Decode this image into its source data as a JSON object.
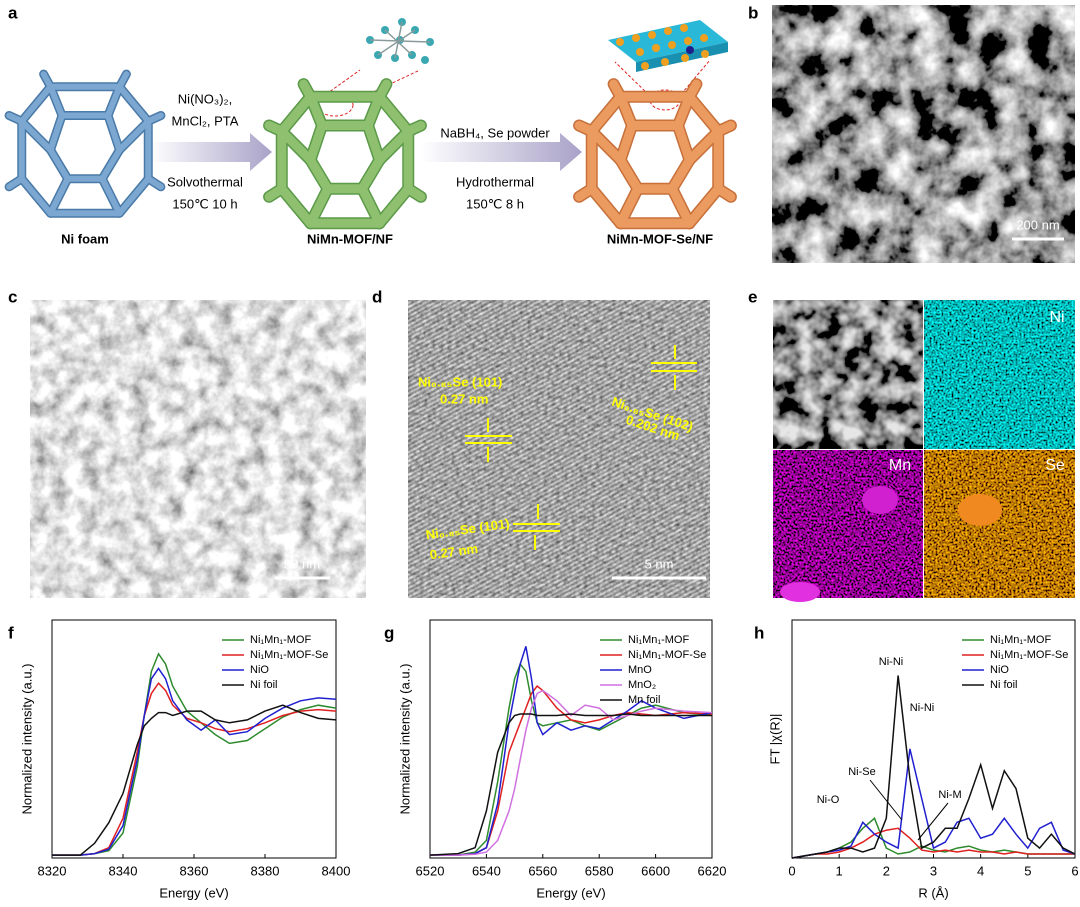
{
  "figure": {
    "panel_labels": [
      "a",
      "b",
      "c",
      "d",
      "e",
      "f",
      "g",
      "h"
    ],
    "schematic": {
      "reagents_1": [
        "Ni(NO₃)₂,",
        "MnCl₂, PTA"
      ],
      "conditions_1": [
        "Solvothermal",
        "150℃ 10 h"
      ],
      "reagents_2": "NaBH₄, Se powder",
      "conditions_2": [
        "Hydrothermal",
        "150℃ 8 h"
      ],
      "materials": [
        "Ni foam",
        "NiMn-MOF/NF",
        "NiMn-MOF-Se/NF"
      ]
    },
    "scale_bars": {
      "b": "200 nm",
      "c": "50 nm",
      "d": "5 nm"
    },
    "hrtem_labels": [
      [
        "Ni₀.₈₅Se (101)",
        "0.27 nm"
      ],
      [
        "Ni₀.₈₅Se  (102)",
        "0.202 nm"
      ],
      [
        "Ni₀.₈₅Se (101)",
        "0.27 nm"
      ]
    ],
    "mapping_labels": [
      "Ni",
      "Mn",
      "Se"
    ]
  },
  "chart_data": [
    {
      "type": "line",
      "x_label": "Energy (eV)",
      "y_label": "Normalized intensity (a.u.)",
      "x": [
        8320,
        8328,
        8332,
        8336,
        8340,
        8344,
        8346,
        8348,
        8350,
        8352,
        8354,
        8358,
        8362,
        8366,
        8370,
        8375,
        8380,
        8385,
        8390,
        8395,
        8400
      ],
      "xlim": [
        8320,
        8400
      ],
      "xticks": [
        8320,
        8340,
        8360,
        8380,
        8400
      ],
      "ylim": [
        -0.02,
        1.6
      ],
      "series": [
        {
          "name": "Ni₁Mn₁-MOF",
          "color": "#2e8b2e",
          "values": [
            0,
            0,
            0.01,
            0.03,
            0.15,
            0.6,
            0.95,
            1.25,
            1.37,
            1.3,
            1.15,
            0.98,
            0.9,
            0.82,
            0.76,
            0.78,
            0.86,
            0.94,
            0.99,
            1.02,
            1.0
          ]
        },
        {
          "name": "Ni₁Mn₁-MOF-Se",
          "color": "#e02020",
          "values": [
            0,
            0,
            0.01,
            0.05,
            0.25,
            0.7,
            0.95,
            1.1,
            1.17,
            1.12,
            1.02,
            0.93,
            0.9,
            0.86,
            0.84,
            0.86,
            0.9,
            0.95,
            0.98,
            0.99,
            0.98
          ]
        },
        {
          "name": "NiO",
          "color": "#2020d0",
          "values": [
            0,
            0,
            0.01,
            0.04,
            0.2,
            0.65,
            0.95,
            1.2,
            1.27,
            1.2,
            1.05,
            0.92,
            0.85,
            0.92,
            0.82,
            0.84,
            0.93,
            1.0,
            1.05,
            1.07,
            1.06
          ]
        },
        {
          "name": "Ni foil",
          "color": "#111111",
          "values": [
            0,
            0,
            0.08,
            0.22,
            0.42,
            0.75,
            0.88,
            0.93,
            0.97,
            0.97,
            0.95,
            0.98,
            0.98,
            0.92,
            0.9,
            0.92,
            0.98,
            1.02,
            0.97,
            0.93,
            0.92
          ]
        }
      ]
    },
    {
      "type": "line",
      "x_label": "Energy (eV)",
      "y_label": "Normalized intensity (a.u.)",
      "x": [
        6520,
        6530,
        6536,
        6540,
        6544,
        6548,
        6550,
        6552,
        6554,
        6556,
        6558,
        6560,
        6565,
        6570,
        6575,
        6580,
        6585,
        6590,
        6595,
        6600,
        6610,
        6620
      ],
      "xlim": [
        6520,
        6620
      ],
      "xticks": [
        6520,
        6540,
        6560,
        6580,
        6600,
        6620
      ],
      "ylim": [
        -0.02,
        1.6
      ],
      "series": [
        {
          "name": "Ni₁Mn₁-MOF",
          "color": "#2e8b2e",
          "values": [
            0,
            0,
            0.02,
            0.1,
            0.5,
            1.0,
            1.2,
            1.3,
            1.25,
            1.05,
            0.9,
            0.88,
            0.9,
            0.92,
            0.88,
            0.85,
            0.9,
            0.95,
            1.0,
            1.02,
            0.97,
            0.95
          ]
        },
        {
          "name": "Ni₁Mn₁-MOF-Se",
          "color": "#e02020",
          "values": [
            0,
            0,
            0.01,
            0.05,
            0.3,
            0.7,
            0.8,
            0.9,
            1.0,
            1.1,
            1.15,
            1.12,
            1.0,
            0.92,
            0.9,
            0.92,
            0.95,
            0.97,
            0.96,
            0.95,
            0.97,
            0.96
          ]
        },
        {
          "name": "MnO",
          "color": "#2020d0",
          "values": [
            0,
            0,
            0.01,
            0.05,
            0.35,
            0.9,
            1.1,
            1.3,
            1.42,
            1.2,
            0.9,
            0.82,
            0.9,
            0.85,
            0.88,
            0.86,
            0.92,
            0.98,
            1.05,
            1.0,
            0.93,
            0.97
          ]
        },
        {
          "name": "MnO₂",
          "color": "#d070e0",
          "values": [
            0,
            0,
            0.005,
            0.02,
            0.1,
            0.3,
            0.45,
            0.65,
            0.85,
            1.0,
            1.1,
            1.12,
            1.05,
            0.95,
            1.02,
            1.0,
            0.92,
            0.95,
            0.98,
            1.0,
            0.98,
            0.97
          ]
        },
        {
          "name": "Mn foil",
          "color": "#111111",
          "values": [
            0,
            0.01,
            0.05,
            0.3,
            0.7,
            0.9,
            0.95,
            0.96,
            0.96,
            0.96,
            0.95,
            0.95,
            0.95,
            0.96,
            0.95,
            0.95,
            0.95,
            0.96,
            0.95,
            0.95,
            0.95,
            0.95
          ]
        }
      ]
    },
    {
      "type": "line",
      "x_label": "R (Å)",
      "y_label": "FT |χ(R)|",
      "x": [
        0,
        0.25,
        0.5,
        0.75,
        1,
        1.25,
        1.5,
        1.75,
        2,
        2.25,
        2.5,
        2.75,
        3,
        3.25,
        3.5,
        3.75,
        4,
        4.25,
        4.5,
        4.75,
        5,
        5.25,
        5.5,
        5.75,
        6
      ],
      "xlim": [
        0,
        6
      ],
      "xticks": [
        0,
        1,
        2,
        3,
        4,
        5,
        6
      ],
      "ylim": [
        0,
        1.2
      ],
      "series": [
        {
          "name": "Ni₁Mn₁-MOF",
          "color": "#2e8b2e",
          "values": [
            0,
            0.01,
            0.02,
            0.03,
            0.05,
            0.08,
            0.15,
            0.2,
            0.05,
            0.02,
            0.03,
            0.06,
            0.04,
            0.03,
            0.05,
            0.06,
            0.04,
            0.03,
            0.04,
            0.03,
            0.02,
            0.02,
            0.02,
            0.02,
            0.02
          ]
        },
        {
          "name": "Ni₁Mn₁-MOF-Se",
          "color": "#e02020",
          "values": [
            0,
            0.01,
            0.02,
            0.02,
            0.03,
            0.05,
            0.08,
            0.12,
            0.14,
            0.15,
            0.1,
            0.04,
            0.03,
            0.04,
            0.03,
            0.04,
            0.03,
            0.03,
            0.02,
            0.03,
            0.02,
            0.02,
            0.02,
            0.02,
            0.02
          ]
        },
        {
          "name": "NiO",
          "color": "#2020d0",
          "values": [
            0,
            0.01,
            0.02,
            0.03,
            0.04,
            0.06,
            0.18,
            0.12,
            0.08,
            0.05,
            0.55,
            0.3,
            0.05,
            0.08,
            0.18,
            0.2,
            0.1,
            0.12,
            0.2,
            0.12,
            0.05,
            0.15,
            0.18,
            0.04,
            0.02
          ]
        },
        {
          "name": "Ni foil",
          "color": "#111111",
          "values": [
            0,
            0.01,
            0.02,
            0.03,
            0.05,
            0.05,
            0.03,
            0.05,
            0.2,
            0.92,
            0.4,
            0.05,
            0.08,
            0.15,
            0.15,
            0.3,
            0.47,
            0.25,
            0.44,
            0.35,
            0.1,
            0.05,
            0.12,
            0.05,
            0.02
          ]
        }
      ],
      "annotations": [
        "Ni-Ni",
        "Ni-Ni",
        "Ni-Se",
        "Ni-O",
        "Ni-M"
      ]
    }
  ]
}
